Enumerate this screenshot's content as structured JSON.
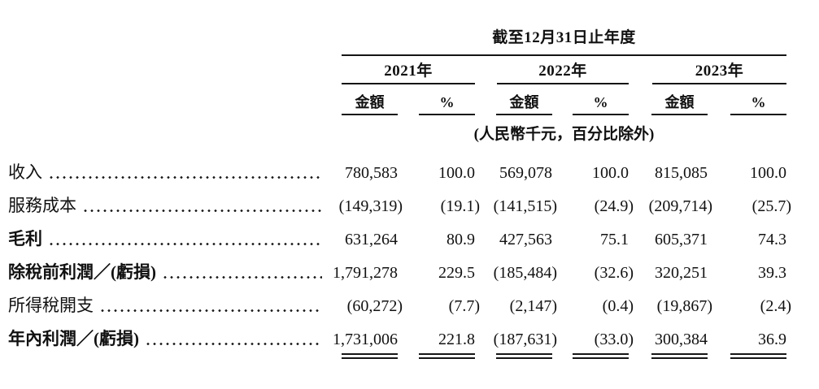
{
  "header": {
    "period_title": "截至12月31日止年度",
    "years": [
      "2021年",
      "2022年",
      "2023年"
    ],
    "amount_label": "金額",
    "percent_label": "%",
    "unit_note": "(人民幣千元，百分比除外)"
  },
  "table": {
    "rows": [
      {
        "label": "收入",
        "values": [
          "780,583",
          "100.0",
          "569,078",
          "100.0",
          "815,085",
          "100.0"
        ]
      },
      {
        "label": "服務成本",
        "values": [
          "(149,319)",
          "(19.1)",
          "(141,515)",
          "(24.9)",
          "(209,714)",
          "(25.7)"
        ]
      },
      {
        "label": "毛利",
        "values": [
          "631,264",
          "80.9",
          "427,563",
          "75.1",
          "605,371",
          "74.3"
        ]
      },
      {
        "label": "除稅前利潤／(虧損)",
        "values": [
          "1,791,278",
          "229.5",
          "(185,484)",
          "(32.6)",
          "320,251",
          "39.3"
        ]
      },
      {
        "label": "所得稅開支",
        "values": [
          "(60,272)",
          "(7.7)",
          "(2,147)",
          "(0.4)",
          "(19,867)",
          "(2.4)"
        ]
      },
      {
        "label": "年內利潤／(虧損)",
        "values": [
          "1,731,006",
          "221.8",
          "(187,631)",
          "(33.0)",
          "300,384",
          "36.9"
        ]
      }
    ]
  }
}
